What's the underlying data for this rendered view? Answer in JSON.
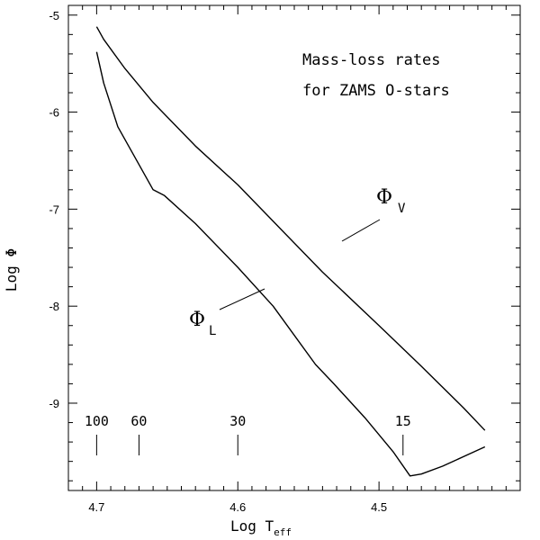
{
  "chart_data": {
    "type": "line",
    "title": "",
    "xlabel": "Log T",
    "xlabel_sub": "eff",
    "ylabel": "Log Φ",
    "xlim": [
      4.72,
      4.4
    ],
    "ylim": [
      -9.9,
      -4.9
    ],
    "x_ticks": [
      {
        "value": 4.7,
        "label": "4.7"
      },
      {
        "value": 4.6,
        "label": "4.6"
      },
      {
        "value": 4.5,
        "label": "4.5"
      }
    ],
    "x_minor_step": 0.01,
    "y_ticks": [
      {
        "value": -5,
        "label": "-5"
      },
      {
        "value": -6,
        "label": "-6"
      },
      {
        "value": -7,
        "label": "-7"
      },
      {
        "value": -8,
        "label": "-8"
      },
      {
        "value": -9,
        "label": "-9"
      }
    ],
    "y_minor_step": 0.2,
    "annotation_lines": [
      "Mass-loss rates",
      "for ZAMS O-stars"
    ],
    "series": [
      {
        "name": "Φ",
        "name_sub": "V",
        "x": [
          4.7,
          4.695,
          4.68,
          4.66,
          4.63,
          4.6,
          4.57,
          4.54,
          4.5,
          4.47,
          4.44,
          4.425
        ],
        "y": [
          -5.12,
          -5.25,
          -5.55,
          -5.9,
          -6.35,
          -6.75,
          -7.2,
          -7.65,
          -8.2,
          -8.62,
          -9.05,
          -9.28
        ]
      },
      {
        "name": "Φ",
        "name_sub": "L",
        "x": [
          4.7,
          4.695,
          4.685,
          4.66,
          4.652,
          4.63,
          4.6,
          4.575,
          4.545,
          4.532,
          4.51,
          4.49,
          4.478,
          4.47,
          4.455,
          4.425
        ],
        "y": [
          -5.38,
          -5.7,
          -6.15,
          -6.8,
          -6.86,
          -7.15,
          -7.6,
          -8.0,
          -8.6,
          -8.8,
          -9.15,
          -9.5,
          -9.75,
          -9.73,
          -9.65,
          -9.45
        ]
      }
    ],
    "mass_markers": [
      {
        "x": 4.7,
        "label": "100"
      },
      {
        "x": 4.67,
        "label": "60"
      },
      {
        "x": 4.6,
        "label": "30"
      },
      {
        "x": 4.483,
        "label": "15"
      }
    ]
  }
}
